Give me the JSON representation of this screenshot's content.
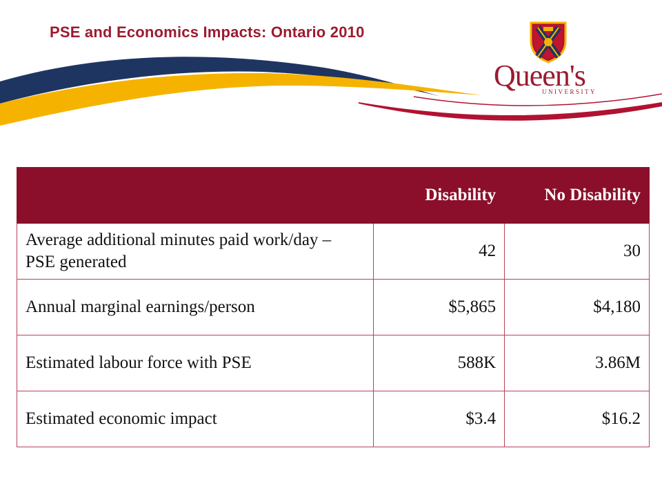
{
  "slide": {
    "title": "PSE and Economics Impacts: Ontario 2010"
  },
  "logo": {
    "name": "Queen's",
    "sub": "UNIVERSITY"
  },
  "colors": {
    "title": "#9b1b30",
    "header_bg": "#8b0f2a",
    "swoosh_navy": "#1f3561",
    "swoosh_gold": "#f5b300",
    "swoosh_red": "#b11232"
  },
  "table": {
    "headers": [
      "",
      "Disability",
      "No Disability"
    ],
    "rows": [
      {
        "label": "Average additional minutes paid work/day – PSE generated",
        "disability": "42",
        "no_disability": "30"
      },
      {
        "label": "Annual marginal earnings/person",
        "disability": "$5,865",
        "no_disability": "$4,180"
      },
      {
        "label": "Estimated labour force with PSE",
        "disability": "588K",
        "no_disability": "3.86M"
      },
      {
        "label": "Estimated economic impact",
        "disability": "$3.4",
        "no_disability": "$16.2"
      }
    ]
  }
}
